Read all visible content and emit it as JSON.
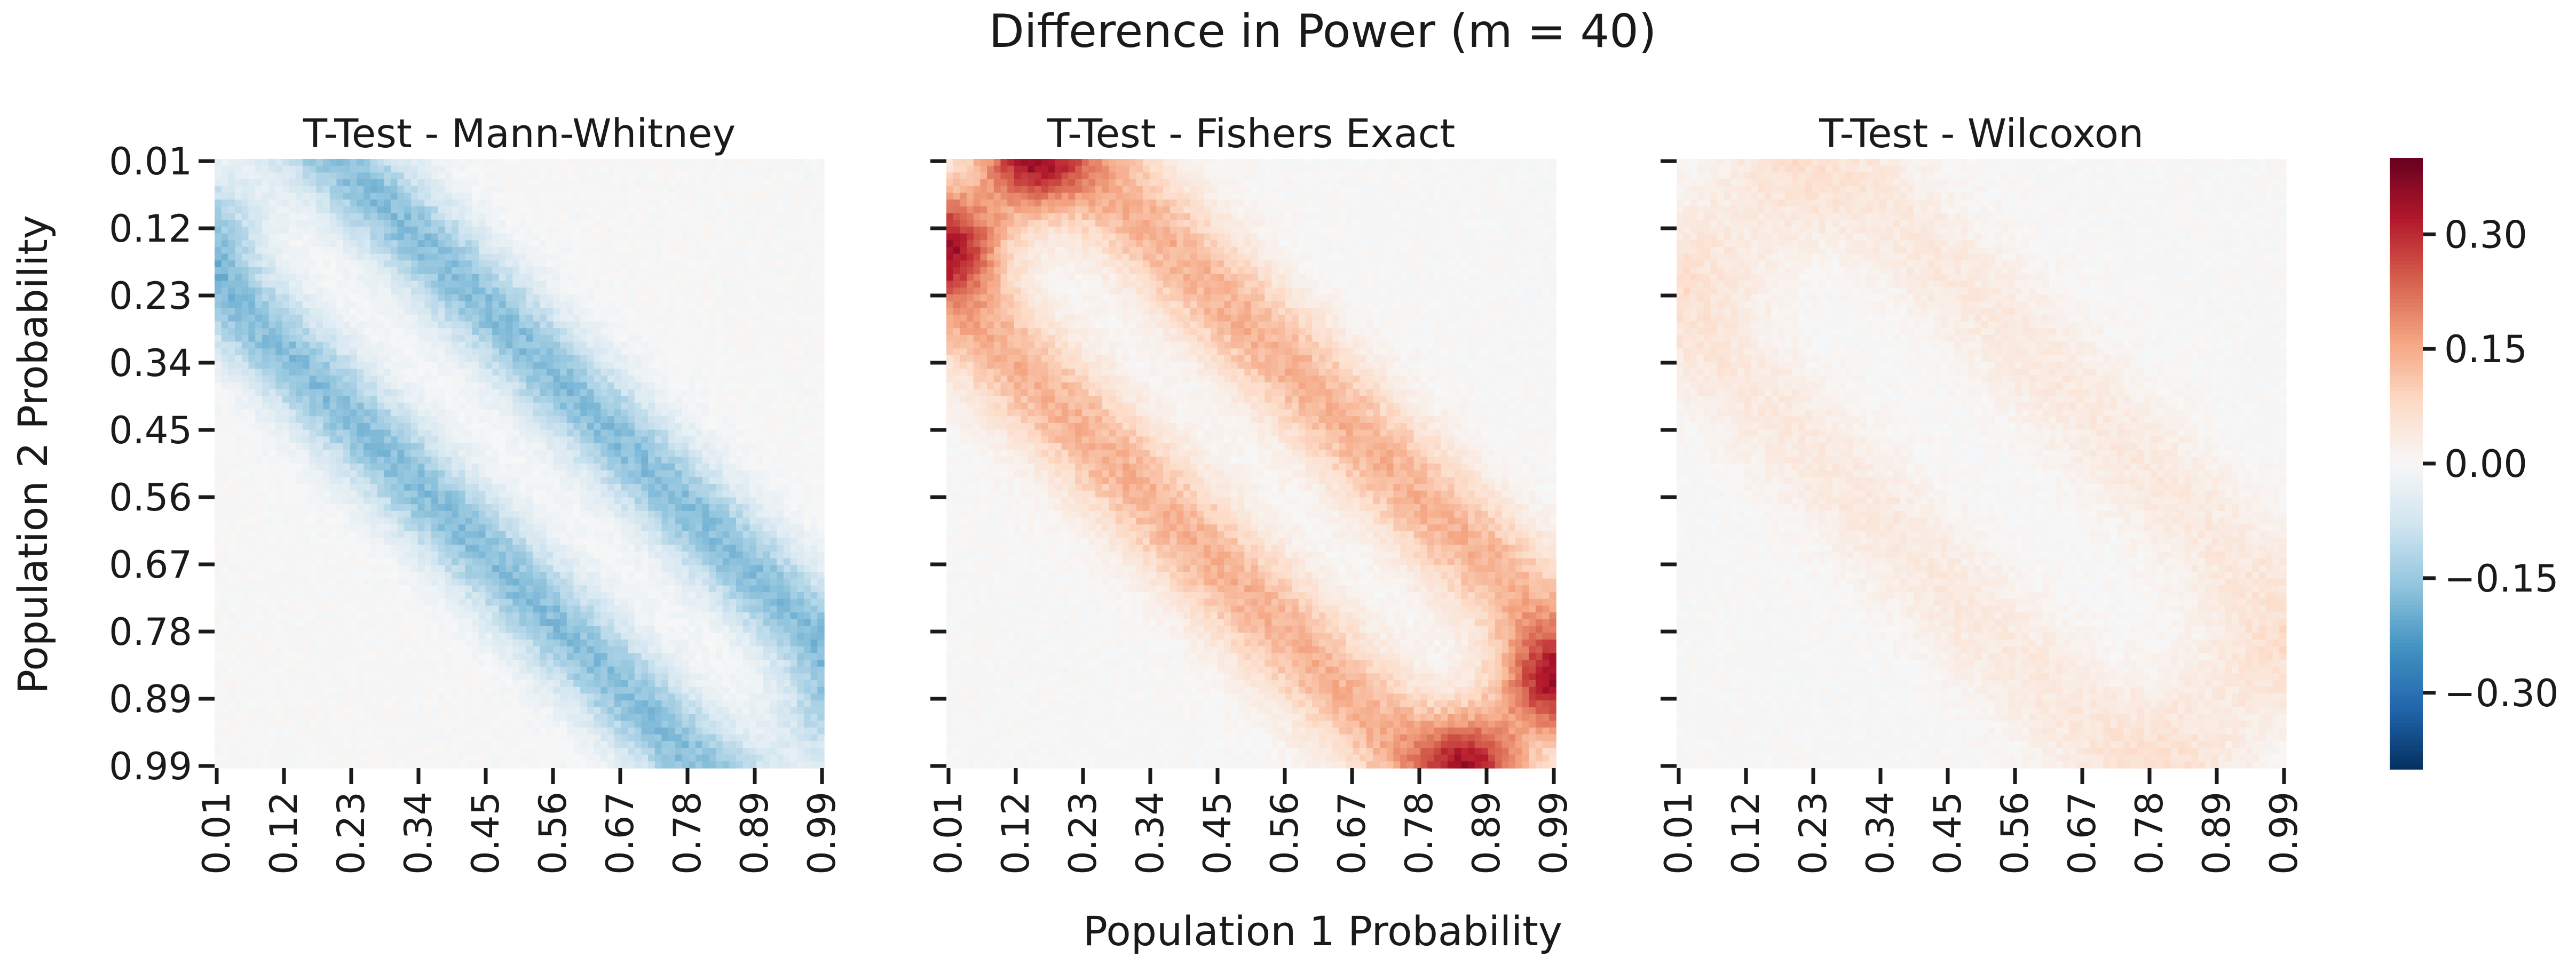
{
  "figure": {
    "title": "Difference in Power (m = 40)",
    "xlabel": "Population 1 Probability",
    "ylabel": "Population 2 Probability"
  },
  "chart_data": [
    {
      "type": "heatmap",
      "title": "T-Test - Mann-Whitney",
      "x_ticks": [
        "0.01",
        "0.12",
        "0.23",
        "0.34",
        "0.45",
        "0.56",
        "0.67",
        "0.78",
        "0.89",
        "0.99"
      ],
      "y_ticks": [
        "0.01",
        "0.12",
        "0.23",
        "0.34",
        "0.45",
        "0.56",
        "0.67",
        "0.78",
        "0.89",
        "0.99"
      ],
      "range": [
        0.01,
        0.99
      ],
      "bands": [
        {
          "offset": 0.2,
          "width": 0.075,
          "amplitude": -0.17
        },
        {
          "offset": -0.2,
          "width": 0.075,
          "amplitude": -0.17
        }
      ],
      "corners": [
        {
          "x": 0.99,
          "y": 0.92,
          "radius": 0.06,
          "amplitude": -0.08
        },
        {
          "x": 0.01,
          "y": 0.1,
          "radius": 0.06,
          "amplitude": -0.08
        }
      ]
    },
    {
      "type": "heatmap",
      "title": "T-Test - Fishers Exact",
      "x_ticks": [
        "0.01",
        "0.12",
        "0.23",
        "0.34",
        "0.45",
        "0.56",
        "0.67",
        "0.78",
        "0.89",
        "0.99"
      ],
      "y_ticks": [
        "",
        "",
        "",
        "",
        "",
        "",
        "",
        "",
        "",
        ""
      ],
      "range": [
        0.01,
        0.99
      ],
      "bands": [
        {
          "offset": 0.22,
          "width": 0.085,
          "amplitude": 0.14
        },
        {
          "offset": -0.22,
          "width": 0.085,
          "amplitude": 0.14
        }
      ],
      "corners": [
        {
          "x": 0.01,
          "y": 0.14,
          "radius": 0.06,
          "amplitude": 0.26
        },
        {
          "x": 0.14,
          "y": 0.01,
          "radius": 0.06,
          "amplitude": 0.26
        },
        {
          "x": 0.99,
          "y": 0.86,
          "radius": 0.06,
          "amplitude": 0.26
        },
        {
          "x": 0.86,
          "y": 0.99,
          "radius": 0.06,
          "amplitude": 0.26
        }
      ]
    },
    {
      "type": "heatmap",
      "title": "T-Test - Wilcoxon",
      "x_ticks": [
        "0.01",
        "0.12",
        "0.23",
        "0.34",
        "0.45",
        "0.56",
        "0.67",
        "0.78",
        "0.89",
        "0.99"
      ],
      "y_ticks": [
        "",
        "",
        "",
        "",
        "",
        "",
        "",
        "",
        "",
        ""
      ],
      "range": [
        0.01,
        0.99
      ],
      "bands": [
        {
          "offset": 0.26,
          "width": 0.09,
          "amplitude": 0.04
        },
        {
          "offset": -0.26,
          "width": 0.09,
          "amplitude": 0.04
        }
      ],
      "corners": [
        {
          "x": 0.04,
          "y": 0.18,
          "radius": 0.08,
          "amplitude": 0.04
        },
        {
          "x": 0.18,
          "y": 0.04,
          "radius": 0.08,
          "amplitude": 0.04
        },
        {
          "x": 0.96,
          "y": 0.82,
          "radius": 0.08,
          "amplitude": 0.04
        },
        {
          "x": 0.82,
          "y": 0.96,
          "radius": 0.08,
          "amplitude": 0.04
        }
      ]
    }
  ],
  "colorbar": {
    "colormap": "RdBu_r",
    "vmin": -0.4,
    "vmax": 0.4,
    "ticks": [
      "0.30",
      "0.15",
      "0.00",
      "−0.15",
      "−0.30"
    ],
    "tick_values": [
      0.3,
      0.15,
      0.0,
      -0.15,
      -0.3
    ]
  }
}
